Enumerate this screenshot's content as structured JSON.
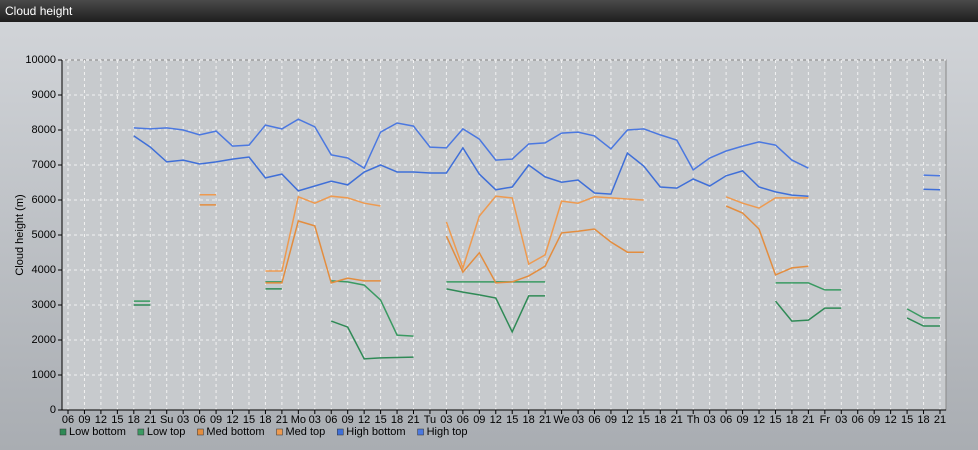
{
  "window_title": "Cloud height",
  "chart_data": {
    "type": "line",
    "y_label": "Cloud height (m)",
    "categories": [
      "06",
      "09",
      "12",
      "15",
      "18",
      "21",
      "Su",
      "03",
      "06",
      "09",
      "12",
      "15",
      "18",
      "21",
      "Mo",
      "03",
      "06",
      "09",
      "12",
      "15",
      "18",
      "21",
      "Tu",
      "03",
      "06",
      "09",
      "12",
      "15",
      "18",
      "21",
      "We",
      "03",
      "06",
      "09",
      "12",
      "15",
      "18",
      "21",
      "Th",
      "03",
      "06",
      "09",
      "12",
      "15",
      "18",
      "21",
      "Fr",
      "03",
      "06",
      "09",
      "12",
      "15",
      "18",
      "21"
    ],
    "ylim": [
      0,
      10000
    ],
    "yticks": [
      0,
      1000,
      2000,
      3000,
      4000,
      5000,
      6000,
      7000,
      8000,
      9000,
      10000
    ],
    "grid": true,
    "legend": "bottom",
    "series": [
      {
        "name": "Low bottom",
        "color": "#2f8a56",
        "values": [
          null,
          null,
          null,
          null,
          3000,
          3000,
          null,
          null,
          null,
          null,
          null,
          null,
          3460,
          3460,
          null,
          null,
          2540,
          2370,
          1460,
          1490,
          1500,
          1510,
          null,
          3460,
          3370,
          3290,
          3200,
          2230,
          3260,
          3260,
          null,
          null,
          null,
          null,
          null,
          null,
          null,
          null,
          null,
          null,
          null,
          null,
          null,
          3110,
          2540,
          2570,
          2910,
          2910,
          null,
          null,
          null,
          2630,
          2400,
          2400
        ]
      },
      {
        "name": "Low top",
        "color": "#3a9a62",
        "values": [
          null,
          null,
          null,
          null,
          3110,
          3110,
          null,
          null,
          null,
          null,
          null,
          null,
          3660,
          3660,
          null,
          null,
          3690,
          3660,
          3570,
          3140,
          2140,
          2110,
          null,
          3660,
          3660,
          3660,
          3660,
          3660,
          3660,
          3660,
          null,
          null,
          null,
          null,
          null,
          null,
          null,
          null,
          null,
          null,
          null,
          null,
          null,
          3630,
          3630,
          3630,
          3430,
          3430,
          null,
          null,
          null,
          2890,
          2630,
          2630
        ]
      },
      {
        "name": "Med bottom",
        "color": "#e38d3f",
        "values": [
          null,
          null,
          null,
          null,
          null,
          null,
          null,
          null,
          5860,
          5860,
          null,
          null,
          3630,
          3630,
          5400,
          5260,
          3630,
          3770,
          3690,
          3690,
          null,
          null,
          null,
          4970,
          3940,
          4490,
          3630,
          3660,
          3830,
          4110,
          5060,
          5110,
          5170,
          4800,
          4510,
          4510,
          null,
          null,
          null,
          null,
          5830,
          5630,
          5170,
          3860,
          4060,
          4110,
          null,
          null,
          null,
          null,
          null,
          null,
          null,
          null
        ]
      },
      {
        "name": "Med top",
        "color": "#ee9a50",
        "values": [
          null,
          null,
          null,
          null,
          null,
          null,
          null,
          null,
          6150,
          6150,
          null,
          null,
          3970,
          3970,
          6090,
          5910,
          6110,
          6060,
          5910,
          5830,
          null,
          null,
          null,
          5370,
          4060,
          5540,
          6110,
          6060,
          4170,
          4430,
          5970,
          5910,
          6090,
          6060,
          6030,
          6000,
          null,
          null,
          null,
          null,
          6090,
          5910,
          5770,
          6060,
          6060,
          6060,
          null,
          null,
          null,
          null,
          null,
          null,
          null,
          null
        ]
      },
      {
        "name": "High bottom",
        "color": "#3f6fd8",
        "values": [
          null,
          null,
          null,
          null,
          7830,
          7510,
          7090,
          7140,
          7030,
          7090,
          7170,
          7230,
          6630,
          6740,
          6260,
          6400,
          6540,
          6430,
          6800,
          7000,
          6800,
          6800,
          6770,
          6770,
          7490,
          6740,
          6290,
          6370,
          7000,
          6660,
          6510,
          6570,
          6200,
          6170,
          7340,
          6970,
          6370,
          6340,
          6600,
          6400,
          6690,
          6830,
          6370,
          6230,
          6140,
          6110,
          null,
          null,
          null,
          null,
          null,
          null,
          6310,
          6290
        ]
      },
      {
        "name": "High top",
        "color": "#4b78e0",
        "values": [
          null,
          null,
          null,
          null,
          8060,
          8030,
          8060,
          8000,
          7860,
          7970,
          7540,
          7570,
          8140,
          8030,
          8310,
          8090,
          7290,
          7200,
          6910,
          7940,
          8200,
          8110,
          7510,
          7490,
          8030,
          7740,
          7140,
          7170,
          7600,
          7630,
          7910,
          7940,
          7830,
          7460,
          8000,
          8030,
          7860,
          7710,
          6860,
          7200,
          7400,
          7540,
          7660,
          7570,
          7140,
          6910,
          null,
          null,
          null,
          null,
          null,
          null,
          6710,
          6690
        ]
      }
    ]
  }
}
